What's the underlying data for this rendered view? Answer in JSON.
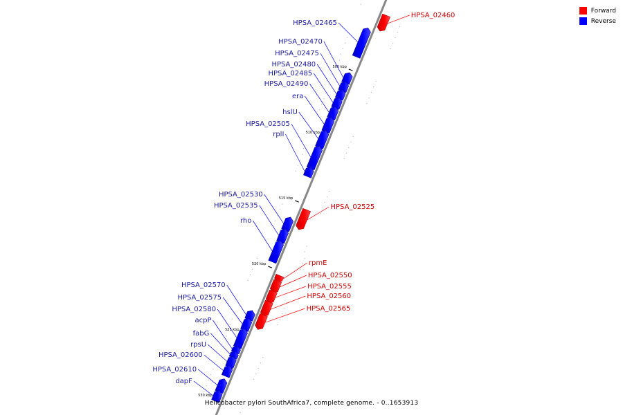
{
  "legend": {
    "items": [
      {
        "label": "Forward",
        "color": "#ff0000"
      },
      {
        "label": "Reverse",
        "color": "#0000ff"
      }
    ]
  },
  "caption": "Helicobacter pylori SouthAfrica7, complete genome. - 0..1653913",
  "colors": {
    "forward": "#ff0000",
    "reverse": "#0000ff",
    "backbone": "#888888",
    "forward_label": "#cc0000",
    "reverse_label": "#1a1aa0"
  },
  "ticks": [
    {
      "kbp": 505,
      "label": "505 kbp"
    },
    {
      "kbp": 510,
      "label": "510 kbp"
    },
    {
      "kbp": 515,
      "label": "515 kbp"
    },
    {
      "kbp": 520,
      "label": "520 kbp"
    },
    {
      "kbp": 525,
      "label": "525 kbp"
    },
    {
      "kbp": 530,
      "label": "530 kbp"
    }
  ],
  "genes": [
    {
      "name": "HPSA_02460",
      "strand": "forward",
      "start_kbp": 500.5,
      "end_kbp": 501.5
    },
    {
      "name": "HPSA_02465",
      "strand": "reverse",
      "start_kbp": 502.0,
      "end_kbp": 504.0
    },
    {
      "name": "HPSA_02470",
      "strand": "reverse",
      "start_kbp": 505.4,
      "end_kbp": 506.0
    },
    {
      "name": "HPSA_02475",
      "strand": "reverse",
      "start_kbp": 506.1,
      "end_kbp": 506.6
    },
    {
      "name": "HPSA_02480",
      "strand": "reverse",
      "start_kbp": 506.7,
      "end_kbp": 507.2
    },
    {
      "name": "HPSA_02485",
      "strand": "reverse",
      "start_kbp": 507.3,
      "end_kbp": 507.9
    },
    {
      "name": "HPSA_02490",
      "strand": "reverse",
      "start_kbp": 508.0,
      "end_kbp": 508.7
    },
    {
      "name": "era",
      "strand": "reverse",
      "start_kbp": 508.8,
      "end_kbp": 509.7
    },
    {
      "name": "hslU",
      "strand": "reverse",
      "start_kbp": 509.8,
      "end_kbp": 510.9
    },
    {
      "name": "HPSA_02505",
      "strand": "reverse",
      "start_kbp": 511.0,
      "end_kbp": 512.5
    },
    {
      "name": "rplI",
      "strand": "reverse",
      "start_kbp": 512.6,
      "end_kbp": 513.1
    },
    {
      "name": "HPSA_02525",
      "strand": "forward",
      "start_kbp": 515.3,
      "end_kbp": 516.6
    },
    {
      "name": "HPSA_02530",
      "strand": "reverse",
      "start_kbp": 516.4,
      "end_kbp": 517.2
    },
    {
      "name": "HPSA_02535",
      "strand": "reverse",
      "start_kbp": 517.3,
      "end_kbp": 518.1
    },
    {
      "name": "rho",
      "strand": "reverse",
      "start_kbp": 518.2,
      "end_kbp": 519.6
    },
    {
      "name": "rpmE",
      "strand": "forward",
      "start_kbp": 520.3,
      "end_kbp": 520.6
    },
    {
      "name": "HPSA_02550",
      "strand": "forward",
      "start_kbp": 520.7,
      "end_kbp": 521.4
    },
    {
      "name": "HPSA_02555",
      "strand": "forward",
      "start_kbp": 521.5,
      "end_kbp": 522.2
    },
    {
      "name": "HPSA_02560",
      "strand": "forward",
      "start_kbp": 522.3,
      "end_kbp": 523.2
    },
    {
      "name": "HPSA_02565",
      "strand": "forward",
      "start_kbp": 523.3,
      "end_kbp": 524.2
    },
    {
      "name": "HPSA_02570",
      "strand": "reverse",
      "start_kbp": 523.5,
      "end_kbp": 524.0
    },
    {
      "name": "HPSA_02575",
      "strand": "reverse",
      "start_kbp": 524.1,
      "end_kbp": 524.8
    },
    {
      "name": "HPSA_02580",
      "strand": "reverse",
      "start_kbp": 524.9,
      "end_kbp": 526.1
    },
    {
      "name": "acpP",
      "strand": "reverse",
      "start_kbp": 526.2,
      "end_kbp": 526.5
    },
    {
      "name": "fabG",
      "strand": "reverse",
      "start_kbp": 526.6,
      "end_kbp": 526.9
    },
    {
      "name": "rpsU",
      "strand": "reverse",
      "start_kbp": 527.0,
      "end_kbp": 527.6
    },
    {
      "name": "HPSA_02600",
      "strand": "reverse",
      "start_kbp": 527.7,
      "end_kbp": 528.3
    },
    {
      "name": "HPSA_02610",
      "strand": "reverse",
      "start_kbp": 528.7,
      "end_kbp": 529.5
    },
    {
      "name": "dapF",
      "strand": "reverse",
      "start_kbp": 529.6,
      "end_kbp": 530.2
    }
  ]
}
